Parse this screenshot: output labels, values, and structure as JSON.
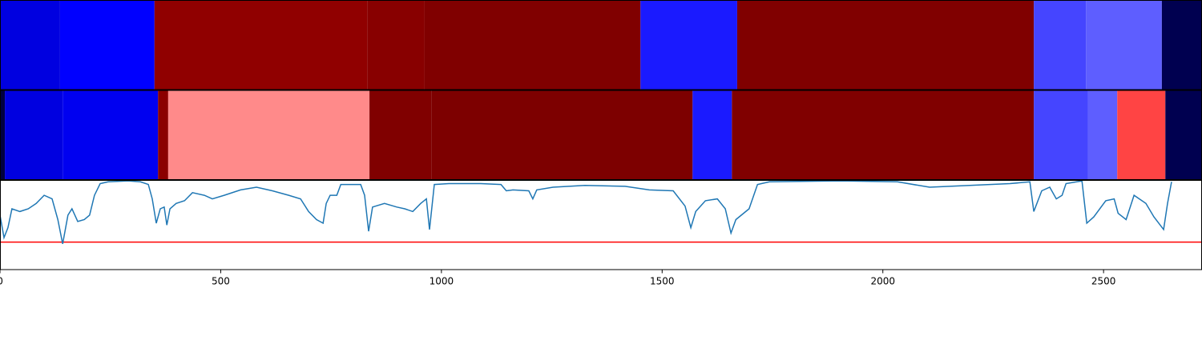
{
  "chart_data": [
    {
      "type": "heatmap",
      "xlim": [
        0,
        2723
      ],
      "segments": [
        {
          "start": 0,
          "end": 136,
          "color": "#0000e0"
        },
        {
          "start": 136,
          "end": 350,
          "color": "#0000ff"
        },
        {
          "start": 350,
          "end": 832,
          "color": "#900000"
        },
        {
          "start": 832,
          "end": 962,
          "color": "#880000"
        },
        {
          "start": 962,
          "end": 1451,
          "color": "#800000"
        },
        {
          "start": 1451,
          "end": 1670,
          "color": "#1a1aff"
        },
        {
          "start": 1670,
          "end": 2342,
          "color": "#800000"
        },
        {
          "start": 2342,
          "end": 2460,
          "color": "#4545ff"
        },
        {
          "start": 2460,
          "end": 2632,
          "color": "#5e5eff"
        },
        {
          "start": 2632,
          "end": 2723,
          "color": "#000050"
        }
      ]
    },
    {
      "type": "heatmap",
      "xlim": [
        0,
        2723
      ],
      "segments": [
        {
          "start": 0,
          "end": 11,
          "color": "#000040"
        },
        {
          "start": 11,
          "end": 142,
          "color": "#0000e0"
        },
        {
          "start": 142,
          "end": 358,
          "color": "#0000f0"
        },
        {
          "start": 358,
          "end": 381,
          "color": "#8b0000"
        },
        {
          "start": 381,
          "end": 837,
          "color": "#ff8a8a"
        },
        {
          "start": 837,
          "end": 977,
          "color": "#800000"
        },
        {
          "start": 977,
          "end": 1569,
          "color": "#7d0000"
        },
        {
          "start": 1569,
          "end": 1658,
          "color": "#1a1aff"
        },
        {
          "start": 1658,
          "end": 2342,
          "color": "#800000"
        },
        {
          "start": 2342,
          "end": 2465,
          "color": "#4545ff"
        },
        {
          "start": 2465,
          "end": 2531,
          "color": "#5e5eff"
        },
        {
          "start": 2531,
          "end": 2640,
          "color": "#ff4444"
        },
        {
          "start": 2640,
          "end": 2723,
          "color": "#000050"
        }
      ]
    },
    {
      "type": "line",
      "xlim": [
        0,
        2723
      ],
      "ylim": [
        0,
        1
      ],
      "xticks": [
        0,
        500,
        1000,
        1500,
        2000,
        2500
      ],
      "color": "#1f77b4",
      "threshold": 0.31,
      "threshold_color": "#ff0000",
      "x": [
        0,
        9,
        18,
        27,
        45,
        64,
        82,
        100,
        118,
        131,
        142,
        154,
        163,
        176,
        191,
        203,
        214,
        227,
        245,
        290,
        318,
        336,
        345,
        354,
        363,
        372,
        378,
        385,
        399,
        418,
        436,
        463,
        481,
        508,
        545,
        581,
        617,
        654,
        681,
        699,
        717,
        732,
        739,
        748,
        763,
        772,
        817,
        826,
        835,
        844,
        871,
        899,
        917,
        935,
        953,
        966,
        973,
        984,
        1017,
        1089,
        1135,
        1147,
        1162,
        1198,
        1207,
        1216,
        1253,
        1325,
        1416,
        1471,
        1525,
        1552,
        1565,
        1576,
        1598,
        1625,
        1643,
        1656,
        1667,
        1697,
        1716,
        1743,
        1906,
        2033,
        2106,
        2197,
        2288,
        2333,
        2342,
        2360,
        2378,
        2393,
        2406,
        2415,
        2451,
        2462,
        2478,
        2505,
        2524,
        2533,
        2551,
        2569,
        2596,
        2614,
        2636,
        2645,
        2654
      ],
      "values": [
        0.61,
        0.36,
        0.47,
        0.68,
        0.65,
        0.68,
        0.74,
        0.83,
        0.79,
        0.56,
        0.29,
        0.61,
        0.68,
        0.54,
        0.56,
        0.61,
        0.83,
        0.96,
        0.98,
        0.99,
        0.98,
        0.95,
        0.79,
        0.52,
        0.68,
        0.7,
        0.5,
        0.68,
        0.74,
        0.77,
        0.86,
        0.83,
        0.79,
        0.83,
        0.89,
        0.92,
        0.88,
        0.83,
        0.79,
        0.65,
        0.56,
        0.52,
        0.74,
        0.83,
        0.83,
        0.95,
        0.95,
        0.83,
        0.43,
        0.7,
        0.74,
        0.7,
        0.68,
        0.65,
        0.74,
        0.79,
        0.45,
        0.95,
        0.96,
        0.96,
        0.95,
        0.88,
        0.89,
        0.88,
        0.79,
        0.89,
        0.92,
        0.94,
        0.93,
        0.89,
        0.88,
        0.71,
        0.47,
        0.65,
        0.77,
        0.79,
        0.68,
        0.41,
        0.56,
        0.68,
        0.95,
        0.98,
        0.99,
        0.98,
        0.92,
        0.94,
        0.96,
        0.98,
        0.65,
        0.88,
        0.92,
        0.79,
        0.83,
        0.96,
        0.99,
        0.52,
        0.59,
        0.77,
        0.79,
        0.63,
        0.56,
        0.83,
        0.74,
        0.59,
        0.45,
        0.74,
        0.98
      ]
    }
  ]
}
